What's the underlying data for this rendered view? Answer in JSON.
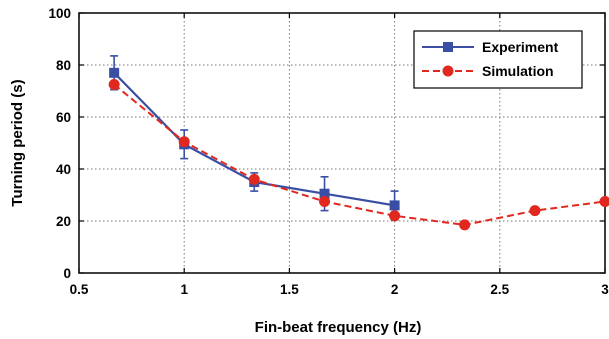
{
  "chart_data": {
    "type": "line",
    "xlabel": "Fin-beat frequency (Hz)",
    "ylabel": "Turning period (s)",
    "xlim": [
      0.5,
      3
    ],
    "ylim": [
      0,
      100
    ],
    "xticks": [
      "0.5",
      "1",
      "1.5",
      "2",
      "2.5",
      "3"
    ],
    "yticks": [
      "0",
      "20",
      "40",
      "60",
      "80",
      "100"
    ],
    "grid": true,
    "legend_position": "top-right",
    "series": [
      {
        "name": "Experiment",
        "color": "#3a4fa3",
        "line": "solid",
        "marker": "square",
        "x": [
          0.667,
          1.0,
          1.333,
          1.667,
          2.0
        ],
        "y": [
          77,
          49.5,
          35,
          30.5,
          26
        ],
        "err_low": [
          6.5,
          5.5,
          3.5,
          6.5,
          5.5
        ],
        "err_high": [
          6.5,
          5.5,
          3.5,
          6.5,
          5.5
        ]
      },
      {
        "name": "Simulation",
        "color": "#e0281e",
        "line": "dashed",
        "marker": "circle",
        "x": [
          0.667,
          1.0,
          1.333,
          1.667,
          2.0,
          2.333,
          2.667,
          3.0
        ],
        "y": [
          72.5,
          50.5,
          36,
          27.5,
          22,
          18.5,
          24,
          27.5
        ]
      }
    ]
  }
}
